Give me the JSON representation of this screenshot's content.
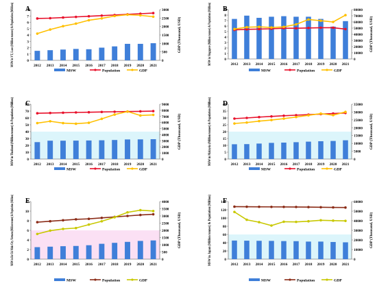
{
  "years": [
    "2012",
    "2013",
    "2014",
    "2015",
    "2016",
    "2017",
    "2018",
    "2019",
    "2020",
    "2021"
  ],
  "colors": {
    "msw": "#3f7fd9",
    "population": "#e8102a",
    "gdp": "#ffc000",
    "pop_alt": "#8b2c17",
    "gdp_alt": "#c8c800",
    "band_blue": "#dcf5fb",
    "band_pink": "#fbe0f4"
  },
  "chart_data": [
    {
      "type": "bar",
      "letter": "A",
      "ylabel": "MSW in VT, Laos (Million tonnes) & Population (Million)",
      "y2label": "GDP (Thousand, USD)",
      "ylim": [
        0,
        8
      ],
      "yticks": [
        0,
        1,
        2,
        3,
        4,
        5,
        6,
        7,
        8
      ],
      "y2lim": [
        0,
        3000
      ],
      "y2ticks": [
        0,
        500,
        1000,
        1500,
        2000,
        2500,
        3000
      ],
      "legend": [
        "MSW",
        "Population",
        "GDP"
      ],
      "series": [
        {
          "name": "MSW",
          "kind": "bar",
          "values": [
            1.5,
            1.6,
            1.7,
            1.8,
            1.75,
            2.0,
            2.2,
            2.6,
            2.6,
            2.7
          ]
        },
        {
          "name": "Population",
          "kind": "line",
          "values": [
            6.6,
            6.65,
            6.75,
            6.85,
            6.95,
            7.05,
            7.15,
            7.25,
            7.35,
            7.45
          ]
        },
        {
          "name": "GDP",
          "kind": "line",
          "axis": "right",
          "values": [
            1580,
            1820,
            2020,
            2170,
            2370,
            2480,
            2620,
            2700,
            2660,
            2580
          ]
        }
      ]
    },
    {
      "type": "bar",
      "letter": "B",
      "ylabel": "MSW in Singapore (Million tonnes) & Population (Million)",
      "y2label": "GDP (Thousand, USD)",
      "ylim": [
        0,
        9
      ],
      "yticks": [
        0,
        1,
        2,
        3,
        4,
        5,
        6,
        7,
        8,
        9
      ],
      "y2lim": [
        0,
        80000
      ],
      "y2ticks": [
        0,
        10000,
        20000,
        30000,
        40000,
        50000,
        60000,
        70000,
        80000
      ],
      "legend": [
        "MSW",
        "Population",
        "GDP"
      ],
      "series": [
        {
          "name": "MSW",
          "kind": "bar",
          "values": [
            7.3,
            7.9,
            7.5,
            7.7,
            7.8,
            7.7,
            7.7,
            7.3,
            5.9,
            6.9
          ]
        },
        {
          "name": "Population",
          "kind": "line",
          "values": [
            5.3,
            5.4,
            5.45,
            5.5,
            5.6,
            5.6,
            5.65,
            5.7,
            5.7,
            5.45
          ]
        },
        {
          "name": "GDP",
          "kind": "line",
          "axis": "right",
          "values": [
            48500,
            51500,
            52000,
            51000,
            52000,
            56000,
            64000,
            62000,
            60000,
            71000
          ]
        }
      ]
    },
    {
      "type": "bar",
      "letter": "C",
      "ylabel": "MSW in Thailand (Million tonnes) & Population (Million)",
      "y2label": "GDP (Thousand, USD)",
      "ylim": [
        0,
        80
      ],
      "yticks": [
        0,
        10,
        20,
        30,
        40,
        50,
        60,
        70,
        80
      ],
      "y2lim": [
        0,
        9000
      ],
      "y2ticks": [
        0,
        1000,
        2000,
        3000,
        4000,
        5000,
        6000,
        7000,
        8000,
        9000
      ],
      "legend": [
        "MSW",
        "Population",
        "GDP"
      ],
      "series": [
        {
          "name": "MSW",
          "kind": "bar",
          "values": [
            24.7,
            26.8,
            26.8,
            26.9,
            27.1,
            27.4,
            27.8,
            28.6,
            28.7,
            29.0
          ]
        },
        {
          "name": "Population",
          "kind": "line",
          "values": [
            66.8,
            67.2,
            67.6,
            68.0,
            68.3,
            68.7,
            69.0,
            69.3,
            69.6,
            69.9
          ]
        },
        {
          "name": "GDP",
          "kind": "line",
          "axis": "right",
          "values": [
            5900,
            6200,
            5900,
            5800,
            5950,
            6600,
            7300,
            7800,
            7150,
            7250
          ]
        }
      ]
    },
    {
      "type": "bar",
      "letter": "D",
      "ylabel": "MSW in Malaysia (Million tonnes) & Population (Million)",
      "y2label": "GDP (Thousand, USD)",
      "ylim": [
        0,
        40
      ],
      "yticks": [
        0,
        5,
        10,
        15,
        20,
        25,
        30,
        35,
        40
      ],
      "y2lim": [
        0,
        35000
      ],
      "y2ticks": [
        0,
        5000,
        10000,
        15000,
        20000,
        25000,
        30000,
        35000
      ],
      "legend": [
        "MSW",
        "Population",
        "GDP"
      ],
      "series": [
        {
          "name": "MSW",
          "kind": "bar",
          "values": [
            10.8,
            10.9,
            11.3,
            11.8,
            12.0,
            12.3,
            12.7,
            13.0,
            13.2,
            13.7
          ]
        },
        {
          "name": "Population",
          "kind": "line",
          "values": [
            29.5,
            30.0,
            30.6,
            31.1,
            31.6,
            32.0,
            32.4,
            32.8,
            33.2,
            33.6
          ]
        },
        {
          "name": "GDP",
          "kind": "line",
          "axis": "right",
          "values": [
            22700,
            23300,
            24200,
            24900,
            25800,
            26800,
            27900,
            29000,
            28000,
            30100
          ]
        }
      ]
    },
    {
      "type": "bar",
      "letter": "E",
      "ylabel": "MSW in Ho Chi Minh City, Vietnam (Million tonnes) & Population (Million)",
      "y2label": "GDP (Thousand, USD)",
      "ylim": [
        0,
        12
      ],
      "yticks": [
        0,
        2,
        4,
        6,
        8,
        10,
        12
      ],
      "y2lim": [
        0,
        4000
      ],
      "y2ticks": [
        0,
        500,
        1000,
        1500,
        2000,
        2500,
        3000,
        3500,
        4000
      ],
      "legend": [
        "MSW",
        "Population",
        "GDP"
      ],
      "series": [
        {
          "name": "MSW",
          "kind": "bar",
          "values": [
            2.5,
            2.6,
            2.7,
            2.75,
            2.9,
            3.2,
            3.4,
            3.6,
            3.8,
            3.9
          ]
        },
        {
          "name": "Population",
          "kind": "line",
          "values": [
            7.7,
            7.9,
            8.1,
            8.3,
            8.4,
            8.6,
            8.8,
            9.0,
            9.2,
            9.35
          ]
        },
        {
          "name": "GDP",
          "kind": "line",
          "axis": "right",
          "values": [
            1750,
            1980,
            2100,
            2160,
            2400,
            2630,
            2910,
            3250,
            3400,
            3340
          ]
        }
      ]
    },
    {
      "type": "bar",
      "letter": "F",
      "ylabel": "MSW in Japan (Million tonnes) & Population (Million)",
      "y2label": "GDP (Thousand, USD)",
      "ylim": [
        0,
        140
      ],
      "yticks": [
        0,
        20,
        40,
        60,
        80,
        100,
        120,
        140
      ],
      "y2lim": [
        0,
        60000
      ],
      "y2ticks": [
        0,
        10000,
        20000,
        30000,
        40000,
        50000,
        60000
      ],
      "legend": [
        "MSW",
        "Population",
        "GDP"
      ],
      "series": [
        {
          "name": "MSW",
          "kind": "bar",
          "values": [
            45.2,
            44.9,
            44.6,
            44.4,
            43.9,
            43.7,
            42.7,
            42.7,
            41.7,
            40.9
          ]
        },
        {
          "name": "Population",
          "kind": "line",
          "values": [
            127.6,
            127.4,
            127.2,
            127.1,
            127.0,
            126.8,
            126.5,
            126.2,
            125.8,
            125.5
          ]
        },
        {
          "name": "GDP",
          "kind": "line",
          "axis": "right",
          "values": [
            49200,
            41000,
            38500,
            35000,
            39000,
            38800,
            39500,
            40500,
            40100,
            39900
          ]
        }
      ]
    }
  ]
}
